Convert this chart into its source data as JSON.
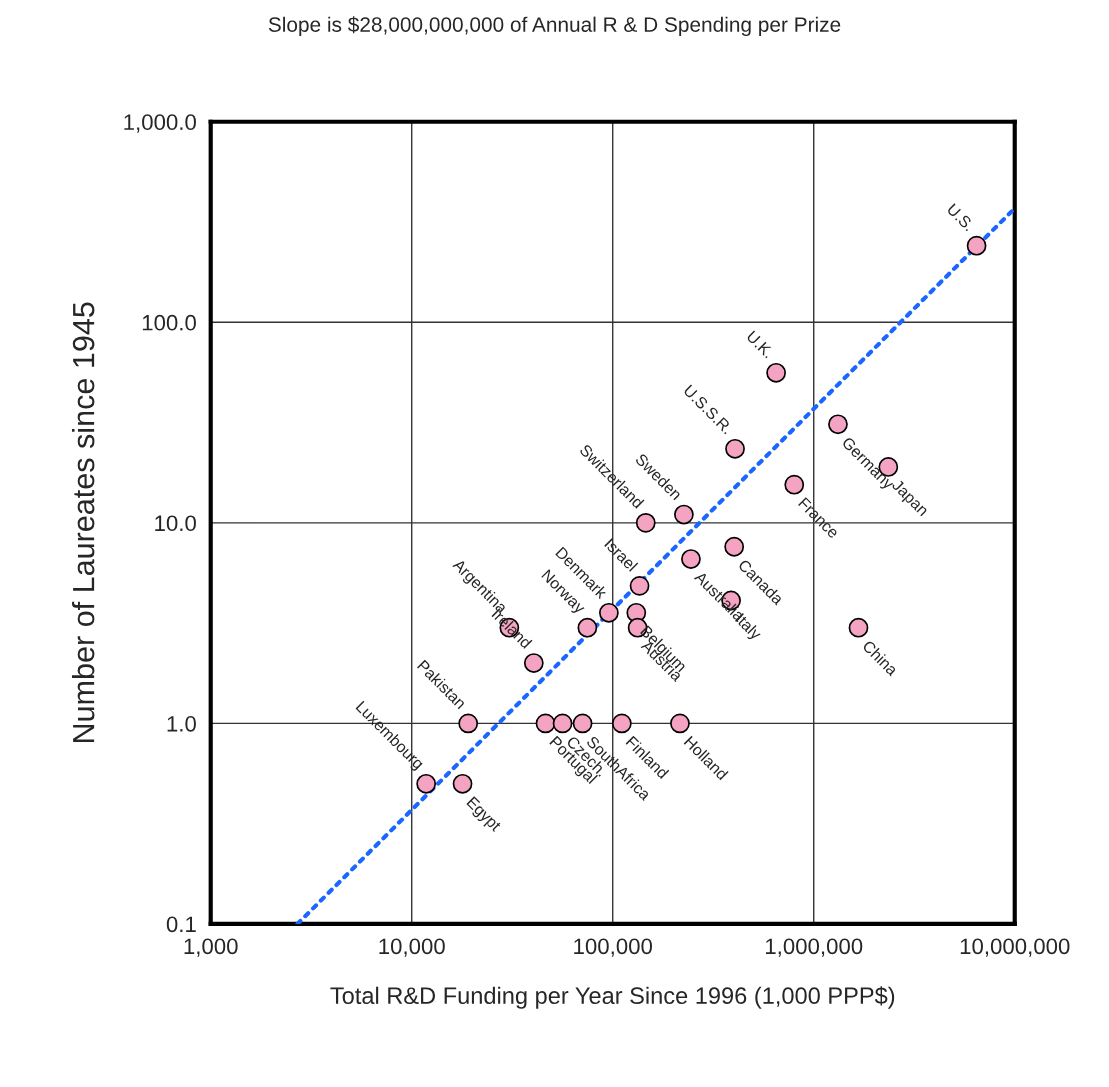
{
  "chart_data": {
    "type": "scatter",
    "title": "Slope is $28,000,000,000 of Annual R & D Spending per Prize",
    "xlabel": "Total R&D Funding per Year Since 1996 (1,000 PPP$)",
    "ylabel": "Number of Laureates since 1945",
    "log": "xy",
    "grid": true,
    "xlim": [
      1000,
      10000000
    ],
    "ylim": [
      0.1,
      1000
    ],
    "xticks": [
      {
        "value": 1000,
        "label": "1,000"
      },
      {
        "value": 10000,
        "label": "10,000"
      },
      {
        "value": 100000,
        "label": "100,000"
      },
      {
        "value": 1000000,
        "label": "1,000,000"
      },
      {
        "value": 10000000,
        "label": "10,000,000"
      }
    ],
    "yticks": [
      {
        "value": 0.1,
        "label": "0.1"
      },
      {
        "value": 1,
        "label": "1.0"
      },
      {
        "value": 10,
        "label": "10.0"
      },
      {
        "value": 100,
        "label": "100.0"
      },
      {
        "value": 1000,
        "label": "1,000.0"
      }
    ],
    "series": [
      {
        "color": "#f4a3c3",
        "marker": "circle",
        "x": [
          6460000,
          650000,
          1320000,
          2350000,
          406000,
          800000,
          226000,
          146000,
          402000,
          245000,
          136000,
          388000,
          95700,
          131000,
          133000,
          74800,
          30600,
          40500,
          1670000,
          19100,
          46300,
          56300,
          70800,
          111000,
          216000,
          11800,
          17900
        ],
        "values": [
          241,
          56,
          31,
          19,
          23.4,
          15.5,
          11,
          10,
          7.6,
          6.6,
          4.85,
          4.1,
          3.56,
          3.56,
          3.0,
          3.0,
          3.0,
          2.0,
          3.0,
          1,
          1,
          1,
          1,
          1,
          1,
          0.5,
          0.5
        ]
      },
      {
        "type": "line",
        "color": "#1a66ff",
        "line_style": "dotted",
        "x": [
          2700,
          10000000
        ],
        "values": [
          0.1,
          370
        ]
      }
    ],
    "annotations": [
      {
        "text": "U.S.",
        "x": 6460000,
        "y": 241
      },
      {
        "text": "U.K.",
        "x": 650000,
        "y": 56
      },
      {
        "text": "Germany",
        "x": 1320000,
        "y": 31
      },
      {
        "text": "Japan",
        "x": 2350000,
        "y": 19
      },
      {
        "text": "U.S.S.R.",
        "x": 406000,
        "y": 23.4
      },
      {
        "text": "France",
        "x": 800000,
        "y": 15.5
      },
      {
        "text": "Sweden",
        "x": 226000,
        "y": 11
      },
      {
        "text": "Switzerland",
        "x": 146000,
        "y": 10
      },
      {
        "text": "Canada",
        "x": 402000,
        "y": 7.6
      },
      {
        "text": "Australia",
        "x": 245000,
        "y": 6.6
      },
      {
        "text": "Israel",
        "x": 136000,
        "y": 4.85
      },
      {
        "text": "Italy",
        "x": 388000,
        "y": 4.1
      },
      {
        "text": "Denmark",
        "x": 95700,
        "y": 3.56
      },
      {
        "text": "Belgium",
        "x": 131000,
        "y": 3.56
      },
      {
        "text": "Austria",
        "x": 133000,
        "y": 3.0
      },
      {
        "text": "Norway",
        "x": 74800,
        "y": 3.0
      },
      {
        "text": "Argentina",
        "x": 30600,
        "y": 3.0
      },
      {
        "text": "Ireland",
        "x": 40500,
        "y": 2.0
      },
      {
        "text": "China",
        "x": 1670000,
        "y": 3.0
      },
      {
        "text": "Pakistan",
        "x": 19100,
        "y": 1
      },
      {
        "text": "Portugal",
        "x": 46300,
        "y": 1
      },
      {
        "text": "Czech.",
        "x": 56300,
        "y": 1
      },
      {
        "text": "SouthAfrica",
        "x": 70800,
        "y": 1
      },
      {
        "text": "Finland",
        "x": 111000,
        "y": 1
      },
      {
        "text": "Holland",
        "x": 216000,
        "y": 1
      },
      {
        "text": "Luxembourg",
        "x": 11800,
        "y": 0.5
      },
      {
        "text": "Egypt",
        "x": 17900,
        "y": 0.5
      }
    ]
  }
}
